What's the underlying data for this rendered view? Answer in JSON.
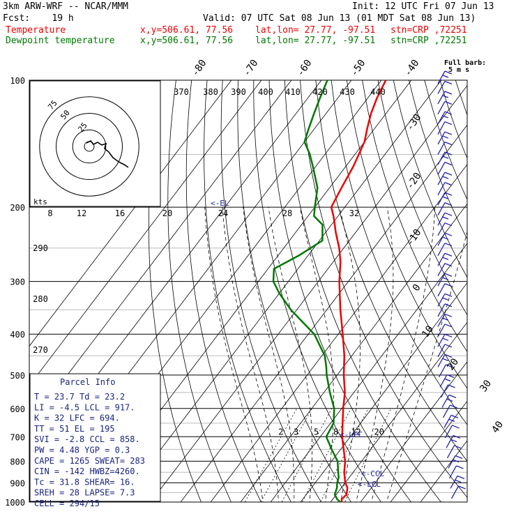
{
  "header": {
    "model": "3km ARW-WRF -- NCAR/MMM",
    "init": "Init: 12 UTC Fri 07 Jun 13",
    "fcst": "Fcst:    19 h",
    "valid": "Valid: 07 UTC Sat 08 Jun 13 (01 MDT Sat 08 Jun 13)",
    "temp_label": "Temperature",
    "dew_label": "Dewpoint temperature",
    "xy": "x,y=506.61, 77.56",
    "latlon": "lat,lon= 27.77, -97.51",
    "stn": "stn=CRP ,72251",
    "full_barb": "Full barb:",
    "full_barb_unit": "5 m s",
    "temp_color": "#ee0000",
    "dew_color": "#007700"
  },
  "chart_data": {
    "type": "line",
    "chart_kind": "skew-T log-p sounding",
    "pressure_ticks": [
      100,
      200,
      300,
      400,
      500,
      600,
      700,
      800,
      900,
      1000
    ],
    "temp_ticks_top": [
      -80,
      -70,
      -60,
      -50,
      -40
    ],
    "temp_ticks_right": [
      -30,
      -20,
      -10,
      0,
      10,
      20,
      30,
      40
    ],
    "theta_labels": [
      370,
      380,
      390,
      400,
      410,
      420,
      430,
      440
    ],
    "theta_left_labels": [
      290,
      280,
      270
    ],
    "mixing_ratio_labels": [
      2,
      3,
      5,
      8,
      12,
      20
    ],
    "series": [
      {
        "name": "Temperature",
        "pressure": [
          1000,
          985,
          960,
          925,
          900,
          850,
          800,
          750,
          700,
          650,
          600,
          550,
          500,
          450,
          400,
          350,
          300,
          270,
          250,
          230,
          210,
          200,
          180,
          160,
          140,
          130,
          120,
          110,
          100
        ],
        "temperature": [
          23.7,
          23.0,
          23.4,
          22.0,
          20.0,
          17.0,
          14.5,
          11.0,
          7.3,
          4.0,
          0.5,
          -3.0,
          -7.8,
          -12.5,
          -18.5,
          -25.5,
          -33.0,
          -37.5,
          -41.5,
          -46.5,
          -51.5,
          -54.5,
          -56.0,
          -57.5,
          -60.0,
          -62.5,
          -65.0,
          -67.0,
          -68.5
        ]
      },
      {
        "name": "Dewpoint temperature",
        "pressure": [
          1000,
          985,
          960,
          925,
          900,
          875,
          850,
          800,
          750,
          700,
          650,
          600,
          550,
          500,
          480,
          450,
          400,
          350,
          320,
          300,
          280,
          260,
          240,
          220,
          210,
          200,
          180,
          160,
          150,
          140,
          130,
          120,
          110,
          100
        ],
        "temperature": [
          23.2,
          21.5,
          19.5,
          18.5,
          17.3,
          16.5,
          15.0,
          12.0,
          7.0,
          2.0,
          1.0,
          -2.5,
          -8.0,
          -13.5,
          -15.5,
          -19.0,
          -28.0,
          -42.0,
          -50.0,
          -55.0,
          -58.0,
          -53.0,
          -49.0,
          -53.0,
          -58.0,
          -60.0,
          -64.0,
          -71.0,
          -75.0,
          -80.0,
          -82.0,
          -84.0,
          -86.0,
          -88.0
        ]
      }
    ],
    "levels": {
      "el": "<-EL",
      "lfc": "<-LFC",
      "ccl": "<-CCL",
      "lcl": "<-LCL"
    },
    "hodograph": {
      "unit": "kts",
      "ring_labels": [
        "25",
        "50",
        "75"
      ]
    },
    "wind_barbs_count": 42
  },
  "parcel_info": {
    "title": "Parcel Info",
    "rows": [
      "T  =    23.7  Td =  23.2",
      "LI =    -4.5  LCL =  917.",
      "K  =      32  LFC =  694.",
      "TT =      51  EL  =  195",
      "SVI =   -2.8  CCL =  858.",
      "PW =    4.48  YGP =   0.3",
      "CAPE =  1265  SWEAT=  283",
      "CIN =   -142  HWBZ=4260.",
      "Tc =    31.8  SHEAR=  16.",
      "SREH =    28  LAPSE=  7.3",
      "CELL = 294/15"
    ]
  },
  "inset_axis": {
    "unit": "kts",
    "ticks": [
      "8",
      "12",
      "16",
      "20",
      "24",
      "28",
      "32"
    ]
  },
  "colors": {
    "grid": "#000000",
    "parcel_text": "#1a237e",
    "barb": "#2222aa",
    "iso": "#aaaaaa"
  }
}
